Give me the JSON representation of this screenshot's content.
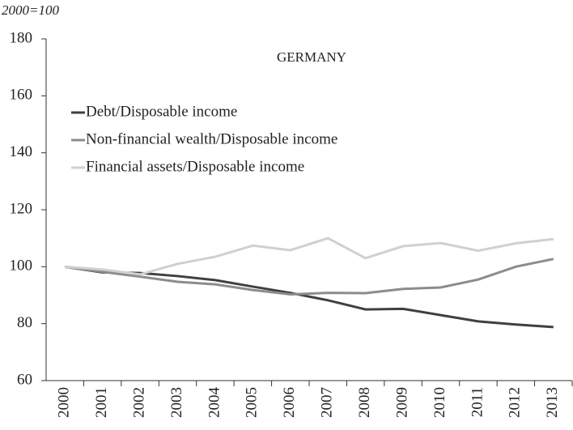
{
  "chart_data": {
    "type": "line",
    "title": "GERMANY",
    "y_label": "2000=100",
    "categories": [
      "2000",
      "2001",
      "2002",
      "2003",
      "2004",
      "2005",
      "2006",
      "2007",
      "2008",
      "2009",
      "2010",
      "2011",
      "2012",
      "2013"
    ],
    "series": [
      {
        "name": "Debt/Disposable income",
        "color": "#404040",
        "values": [
          100,
          98,
          97.8,
          96.7,
          95.3,
          93,
          90.8,
          88.2,
          85,
          85.2,
          83,
          80.8,
          79.7,
          78.8
        ]
      },
      {
        "name": "Non-financial wealth/Disposable income",
        "color": "#8c8c8c",
        "values": [
          100,
          98.2,
          96.5,
          94.7,
          93.8,
          91.8,
          90.3,
          90.8,
          90.7,
          92.2,
          92.7,
          95.5,
          100,
          102.7
        ]
      },
      {
        "name": "Financial assets/Disposable income",
        "color": "#d0d0d0",
        "values": [
          100,
          99,
          97.3,
          101,
          103.5,
          107.4,
          105.8,
          110,
          103,
          107.2,
          108.3,
          105.6,
          108.2,
          109.7
        ]
      }
    ],
    "ylim": [
      60,
      180
    ],
    "yticks": [
      60,
      80,
      100,
      120,
      140,
      160,
      180
    ],
    "legend": "upper-left",
    "grid": false
  }
}
